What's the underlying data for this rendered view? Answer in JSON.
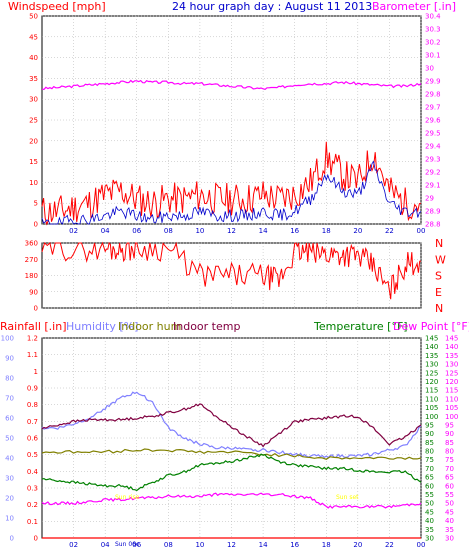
{
  "colors": {
    "wind": "#ff0000",
    "gust": "#0000cc",
    "barometer": "#ff00ff",
    "direction": "#ff0000",
    "rain": "#ff0000",
    "humidity": "#8080ff",
    "indoor_hum": "#808000",
    "indoor_temp": "#800040",
    "temperature": "#008000",
    "dew": "#ff00ff",
    "sun": "#ffff00",
    "grid": "#b0b0b0",
    "axis": "#000000",
    "xtick": "#0000cc"
  },
  "top_titles": {
    "left": "Windspeed [mph]",
    "center": "24 hour graph day : August 11 2013",
    "right": "Barometer [.in]"
  },
  "bottom_titles": {
    "rainfall": "Rainfall [.in]",
    "humidity": "Humidity [%]",
    "indoor_hum": "Indoor hum",
    "indoor_temp": "Indoor temp",
    "temperature": "Temperature [°F]",
    "dew": "Dew Point [°F]"
  },
  "sun_labels": {
    "sunrise": "Sun rise",
    "sunset": "Sun set",
    "sun_marker": "Sun 06c"
  },
  "chart_data": {
    "type": "line",
    "x_ticks": [
      "02",
      "04",
      "06",
      "08",
      "10",
      "12",
      "14",
      "16",
      "18",
      "20",
      "22",
      "00"
    ],
    "x_range_hours": [
      0,
      24
    ],
    "panels": {
      "wind": {
        "y_ticks_left": [
          "0",
          "5",
          "10",
          "15",
          "20",
          "25",
          "30",
          "35",
          "40",
          "45",
          "50"
        ],
        "ylim_left": [
          0,
          50
        ],
        "y_ticks_right": [
          "28.8",
          "28.9",
          "29",
          "29.1",
          "29.2",
          "29.3",
          "29.4",
          "29.5",
          "29.6",
          "29.7",
          "29.8",
          "29.9",
          "30",
          "30.1",
          "30.2",
          "30.3",
          "30.4"
        ],
        "ylim_right": [
          28.8,
          30.4
        ],
        "series": [
          {
            "key": "barometer",
            "x": [
              0,
              1,
              2,
              3,
              4,
              5,
              6,
              7,
              8,
              9,
              10,
              11,
              12,
              13,
              14,
              15,
              16,
              17,
              18,
              19,
              20,
              21,
              22,
              23,
              24
            ],
            "values": [
              29.84,
              29.85,
              29.86,
              29.87,
              29.88,
              29.89,
              29.9,
              29.89,
              29.89,
              29.88,
              29.88,
              29.87,
              29.86,
              29.85,
              29.84,
              29.85,
              29.87,
              29.88,
              29.88,
              29.89,
              29.88,
              29.87,
              29.86,
              29.86,
              29.88
            ]
          },
          {
            "key": "wind",
            "x": [
              0,
              1,
              2,
              3,
              4,
              5,
              6,
              7,
              8,
              9,
              10,
              11,
              12,
              13,
              14,
              15,
              16,
              17,
              18,
              19,
              20,
              21,
              22,
              23,
              24
            ],
            "values": [
              3,
              3,
              4,
              5,
              7,
              8,
              6,
              5,
              6,
              6,
              7,
              6,
              6,
              6,
              7,
              6,
              7,
              10,
              16,
              12,
              10,
              17,
              8,
              5,
              5
            ]
          },
          {
            "key": "gust",
            "x": [
              0,
              1,
              2,
              3,
              4,
              5,
              6,
              7,
              8,
              9,
              10,
              11,
              12,
              13,
              14,
              15,
              16,
              17,
              18,
              19,
              20,
              21,
              22,
              23,
              24
            ],
            "values": [
              0,
              0,
              1,
              1,
              2,
              3,
              2,
              1,
              2,
              2,
              3,
              2,
              2,
              2,
              3,
              2,
              3,
              6,
              12,
              8,
              7,
              14,
              5,
              3,
              3
            ]
          }
        ]
      },
      "direction": {
        "y_ticks": [
          "0",
          "90",
          "180",
          "270",
          "360"
        ],
        "ylim": [
          0,
          360
        ],
        "compass_labels": [
          "N",
          "W",
          "S",
          "E",
          "N"
        ],
        "series": [
          {
            "key": "direction",
            "x": [
              0,
              2,
              4,
              5,
              6,
              8,
              10,
              12,
              14,
              15,
              16,
              17,
              18,
              19,
              20,
              21,
              22,
              23,
              24
            ],
            "values": [
              330,
              330,
              330,
              330,
              330,
              330,
              180,
              180,
              180,
              150,
              310,
              310,
              300,
              300,
              290,
              230,
              90,
              240,
              260
            ]
          }
        ]
      },
      "climate": {
        "y_ticks_rain": [
          "0",
          "0.1",
          "0.2",
          "0.3",
          "0.4",
          "0.5",
          "0.6",
          "0.7",
          "0.8",
          "0.9",
          "1",
          "1.1",
          "1.2"
        ],
        "ylim_rain": [
          0,
          1.2
        ],
        "y_ticks_humidity": [
          "0",
          "10",
          "20",
          "30",
          "40",
          "50",
          "60",
          "70",
          "80",
          "90",
          "100"
        ],
        "ylim_humidity": [
          0,
          100
        ],
        "y_ticks_temp": [
          "30",
          "35",
          "40",
          "45",
          "50",
          "55",
          "60",
          "65",
          "70",
          "75",
          "80",
          "85",
          "90",
          "95",
          "100",
          "105",
          "110",
          "115",
          "120",
          "125",
          "130",
          "135",
          "140",
          "145"
        ],
        "ylim_temp": [
          30,
          145
        ],
        "series": [
          {
            "key": "humidity",
            "axis": "humidity",
            "x": [
              0,
              1,
              2,
              3,
              4,
              5,
              6,
              7,
              8,
              9,
              10,
              11,
              12,
              13,
              14,
              15,
              16,
              17,
              18,
              19,
              20,
              21,
              22,
              23,
              24
            ],
            "values": [
              55,
              55,
              57,
              60,
              65,
              70,
              73,
              68,
              55,
              50,
              47,
              45,
              45,
              44,
              44,
              43,
              42,
              41,
              41,
              41,
              41,
              42,
              44,
              46,
              56
            ]
          },
          {
            "key": "indoor_hum",
            "axis": "humidity",
            "x": [
              0,
              2,
              4,
              6,
              8,
              10,
              12,
              14,
              16,
              18,
              20,
              22,
              24
            ],
            "values": [
              43,
              43,
              43,
              44,
              44,
              43,
              43,
              42,
              41,
              40,
              40,
              40,
              40
            ]
          },
          {
            "key": "indoor_temp",
            "axis": "temp",
            "x": [
              0,
              1,
              2,
              3,
              4,
              5,
              6,
              7,
              8,
              9,
              10,
              11,
              12,
              13,
              14,
              15,
              16,
              17,
              18,
              19,
              20,
              21,
              22,
              23,
              24
            ],
            "values": [
              93,
              95,
              97,
              98,
              98,
              98,
              99,
              100,
              102,
              104,
              107,
              100,
              94,
              88,
              83,
              90,
              97,
              98,
              99,
              100,
              100,
              93,
              84,
              88,
              95
            ]
          },
          {
            "key": "temperature",
            "axis": "temp",
            "x": [
              0,
              1,
              2,
              3,
              4,
              5,
              6,
              7,
              8,
              9,
              10,
              11,
              12,
              13,
              14,
              15,
              16,
              17,
              18,
              19,
              20,
              21,
              22,
              23,
              24
            ],
            "values": [
              64,
              63,
              62,
              61,
              60,
              60,
              58,
              62,
              66,
              68,
              72,
              73,
              74,
              76,
              78,
              74,
              72,
              71,
              70,
              70,
              69,
              68,
              68,
              68,
              62
            ]
          },
          {
            "key": "dew",
            "axis": "temp",
            "x": [
              0,
              1,
              2,
              3,
              4,
              5,
              6,
              7,
              8,
              9,
              10,
              11,
              12,
              13,
              14,
              15,
              16,
              17,
              18,
              19,
              20,
              21,
              22,
              23,
              24
            ],
            "values": [
              50,
              50,
              50,
              51,
              52,
              52,
              53,
              53,
              54,
              54,
              54,
              55,
              55,
              55,
              55,
              55,
              54,
              53,
              48,
              48,
              48,
              48,
              48,
              49,
              50
            ]
          },
          {
            "key": "rain",
            "axis": "rain",
            "x": [
              0,
              24
            ],
            "values": [
              0,
              0
            ]
          }
        ]
      }
    }
  }
}
